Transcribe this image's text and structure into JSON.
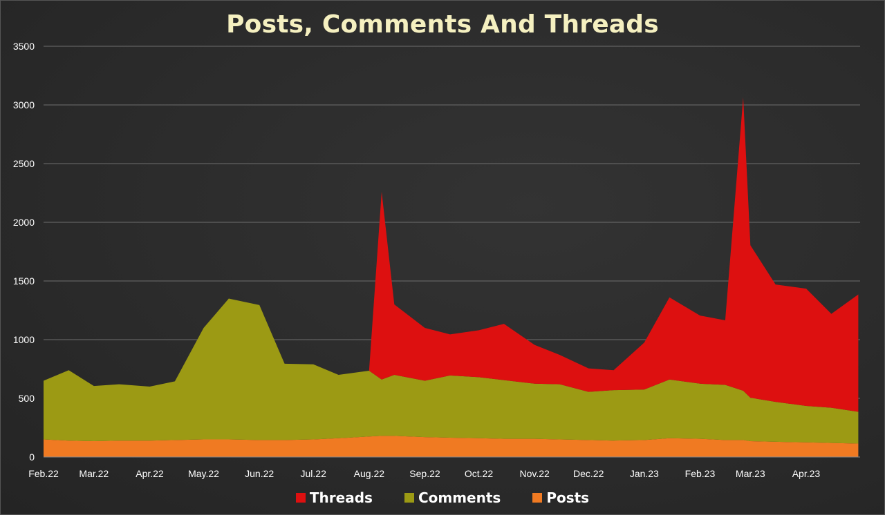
{
  "chart_data": {
    "type": "area",
    "stacked": true,
    "title": "Posts, Comments And Threads",
    "xlabel": "",
    "ylabel": "",
    "ylim": [
      0,
      3500
    ],
    "y_ticks": [
      "0",
      "500",
      "1000",
      "1500",
      "2000",
      "2500",
      "3000",
      "3500"
    ],
    "x_tick_labels": [
      "Feb.22",
      "Mar.22",
      "Apr.22",
      "May.22",
      "Jun.22",
      "Jul.22",
      "Aug.22",
      "Sep.22",
      "Oct.22",
      "Nov.22",
      "Dec.22",
      "Jan.23",
      "Feb.23",
      "Mar.23",
      "Apr.23"
    ],
    "grid": "horizontal",
    "legend_position": "bottom",
    "x": [
      "2022-02-01",
      "2022-02-15",
      "2022-03-01",
      "2022-03-15",
      "2022-04-01",
      "2022-04-15",
      "2022-05-01",
      "2022-05-15",
      "2022-06-01",
      "2022-06-15",
      "2022-07-01",
      "2022-07-15",
      "2022-08-01",
      "2022-08-08",
      "2022-08-15",
      "2022-09-01",
      "2022-09-15",
      "2022-10-01",
      "2022-10-15",
      "2022-11-01",
      "2022-11-15",
      "2022-12-01",
      "2022-12-15",
      "2023-01-01",
      "2023-01-15",
      "2023-02-01",
      "2023-02-15",
      "2023-02-25",
      "2023-03-01",
      "2023-03-15",
      "2023-04-01",
      "2023-04-15",
      "2023-04-30"
    ],
    "series": [
      {
        "name": "Posts",
        "color": "#f07a22",
        "values": [
          150,
          140,
          135,
          140,
          140,
          145,
          150,
          150,
          145,
          145,
          150,
          160,
          175,
          180,
          180,
          170,
          165,
          160,
          155,
          155,
          150,
          145,
          140,
          145,
          160,
          155,
          145,
          145,
          135,
          130,
          125,
          120,
          115
        ]
      },
      {
        "name": "Comments",
        "color": "#9c9a14",
        "values": [
          500,
          600,
          470,
          480,
          460,
          500,
          950,
          1200,
          1150,
          650,
          640,
          540,
          560,
          480,
          520,
          480,
          530,
          520,
          500,
          470,
          470,
          410,
          430,
          430,
          500,
          470,
          470,
          420,
          370,
          340,
          310,
          300,
          270
        ]
      },
      {
        "name": "Threads",
        "color": "#dd1010",
        "values": [
          0,
          0,
          0,
          0,
          0,
          0,
          0,
          0,
          0,
          0,
          0,
          0,
          0,
          1600,
          600,
          450,
          350,
          400,
          480,
          330,
          250,
          200,
          170,
          400,
          700,
          580,
          550,
          2500,
          1300,
          1000,
          1000,
          800,
          1000
        ]
      }
    ]
  }
}
